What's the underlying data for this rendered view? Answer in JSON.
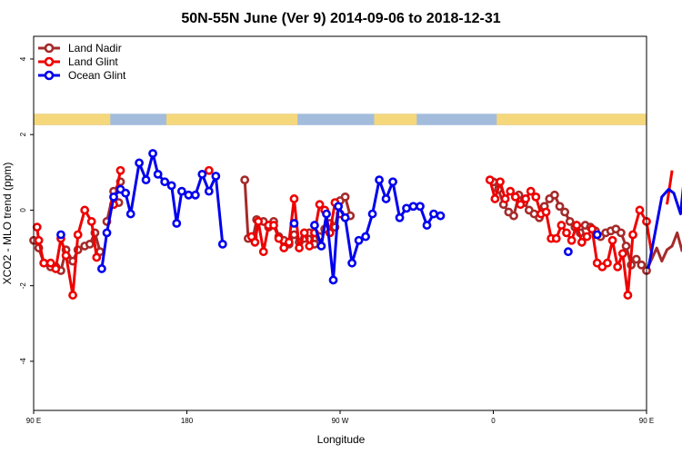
{
  "chart_data": {
    "type": "line",
    "title": "50N-55N June (Ver 9)   2014-09-06 to 2018-12-31",
    "xlabel": "Longitude",
    "ylabel": "XCO2 - MLO trend (ppm)",
    "xlim": [
      90,
      450
    ],
    "ylim": [
      -5.3,
      4.6
    ],
    "x_ticks": [
      {
        "value": 90,
        "label": "90 E"
      },
      {
        "value": 180,
        "label": "180"
      },
      {
        "value": 270,
        "label": "90 W"
      },
      {
        "value": 360,
        "label": "0"
      },
      {
        "value": 450,
        "label": "90 E"
      },
      {
        "value": 540,
        "label": "180"
      }
    ],
    "y_ticks": [
      -4,
      -2,
      0,
      2,
      4
    ],
    "grid": false,
    "legend_position": "top-left",
    "land_band": {
      "y_range": [
        2.55,
        2.25
      ],
      "land_color": "#f5d77c",
      "ocean_color": "#a3bcdc",
      "land_intervals": [
        [
          90,
          135
        ],
        [
          168,
          245
        ],
        [
          290,
          315
        ],
        [
          362,
          450
        ],
        [
          450,
          495
        ],
        [
          528,
          540
        ]
      ]
    },
    "series": [
      {
        "name": "Land Nadir",
        "color": "#a52a2a",
        "points": [
          [
            90,
            -0.8
          ],
          [
            93,
            -1.0
          ],
          [
            96,
            -1.4
          ],
          [
            100,
            -1.5
          ],
          [
            103,
            -1.5
          ],
          [
            106,
            -1.6
          ],
          [
            109,
            -1.05
          ],
          [
            113,
            -1.35
          ],
          [
            116,
            -1.05
          ],
          [
            120,
            -0.95
          ],
          [
            123,
            -0.9
          ],
          [
            126,
            -0.6
          ],
          [
            129,
            -1.1
          ],
          null,
          [
            133,
            -0.3
          ],
          [
            137,
            0.5
          ],
          [
            141,
            0.75
          ],
          null,
          [
            140,
            0.2
          ],
          null,
          [
            214,
            0.8
          ],
          [
            216,
            -0.75
          ],
          [
            219,
            -0.7
          ],
          [
            221,
            -0.25
          ],
          [
            225,
            -0.3
          ],
          [
            228,
            -0.45
          ],
          [
            231,
            -0.3
          ],
          [
            234,
            -0.7
          ],
          [
            237,
            -0.8
          ],
          [
            240,
            -0.9
          ],
          [
            243,
            -0.65
          ],
          [
            246,
            -0.85
          ],
          [
            249,
            -0.75
          ],
          [
            252,
            -0.6
          ],
          [
            255,
            -0.9
          ],
          [
            258,
            -0.7
          ],
          [
            261,
            -0.5
          ],
          [
            264,
            -0.35
          ],
          [
            267,
            -0.45
          ],
          [
            270,
            0.25
          ],
          [
            273,
            0.35
          ],
          [
            276,
            -0.15
          ],
          null,
          [
            360,
            0.75
          ],
          [
            363,
            0.55
          ],
          [
            366,
            0.15
          ],
          [
            369,
            -0.05
          ],
          [
            372,
            -0.15
          ],
          [
            375,
            0.4
          ],
          [
            378,
            0.2
          ],
          [
            381,
            0.0
          ],
          [
            384,
            -0.1
          ],
          [
            387,
            -0.2
          ],
          [
            390,
            0.1
          ],
          [
            393,
            0.3
          ],
          [
            396,
            0.4
          ],
          [
            399,
            0.1
          ],
          [
            402,
            -0.05
          ],
          [
            405,
            -0.3
          ],
          [
            408,
            -0.45
          ],
          [
            411,
            -0.6
          ],
          [
            414,
            -0.4
          ],
          [
            417,
            -0.45
          ],
          [
            420,
            -0.55
          ],
          [
            423,
            -0.7
          ],
          [
            426,
            -0.6
          ],
          [
            429,
            -0.55
          ],
          [
            432,
            -0.5
          ],
          [
            435,
            -0.6
          ],
          [
            438,
            -0.95
          ],
          [
            441,
            -1.45
          ],
          [
            444,
            -1.3
          ],
          [
            447,
            -1.45
          ],
          [
            450,
            -1.6
          ],
          [
            453,
            -1.3
          ],
          [
            456,
            -1.0
          ],
          [
            459,
            -1.35
          ],
          [
            462,
            -1.05
          ],
          [
            465,
            -0.95
          ],
          [
            468,
            -0.6
          ],
          [
            471,
            -1.1
          ],
          null,
          [
            476,
            -0.3
          ],
          [
            480,
            0.5
          ],
          [
            484,
            0.75
          ],
          null,
          [
            483,
            0.2
          ]
        ]
      },
      {
        "name": "Land Glint",
        "color": "#ee0000",
        "points": [
          [
            92,
            -0.45
          ],
          [
            93,
            -0.8
          ],
          [
            96,
            -1.4
          ],
          [
            100,
            -1.4
          ],
          [
            103,
            -1.55
          ],
          [
            106,
            -0.75
          ],
          [
            109,
            -1.2
          ],
          [
            113,
            -2.25
          ],
          [
            116,
            -0.65
          ],
          [
            120,
            0.0
          ],
          [
            124,
            -0.3
          ],
          [
            127,
            -1.25
          ],
          null,
          [
            137,
            0.15
          ],
          [
            141,
            1.05
          ],
          null,
          [
            193,
            1.05
          ],
          null,
          [
            218,
            -0.7
          ],
          [
            220,
            -0.85
          ],
          [
            222,
            -0.3
          ],
          [
            225,
            -1.1
          ],
          [
            228,
            -0.4
          ],
          [
            231,
            -0.4
          ],
          [
            234,
            -0.75
          ],
          [
            237,
            -1.0
          ],
          [
            240,
            -0.85
          ],
          [
            243,
            0.3
          ],
          [
            246,
            -1.0
          ],
          [
            249,
            -0.6
          ],
          [
            252,
            -0.95
          ],
          [
            255,
            -0.6
          ],
          [
            258,
            0.15
          ],
          [
            261,
            0.0
          ],
          [
            264,
            -0.6
          ],
          [
            267,
            0.2
          ],
          [
            270,
            -0.1
          ],
          null,
          [
            358,
            0.8
          ],
          [
            361,
            0.3
          ],
          [
            364,
            0.75
          ],
          [
            367,
            0.3
          ],
          [
            370,
            0.5
          ],
          [
            373,
            0.35
          ],
          [
            376,
            0.15
          ],
          [
            379,
            0.3
          ],
          [
            382,
            0.5
          ],
          [
            385,
            0.35
          ],
          [
            388,
            -0.1
          ],
          [
            391,
            -0.05
          ],
          [
            394,
            -0.75
          ],
          [
            397,
            -0.75
          ],
          [
            400,
            -0.4
          ],
          [
            403,
            -0.6
          ],
          [
            406,
            -0.8
          ],
          [
            409,
            -0.4
          ],
          [
            412,
            -0.85
          ],
          [
            415,
            -0.7
          ],
          [
            418,
            -0.5
          ],
          [
            421,
            -1.4
          ],
          [
            424,
            -1.5
          ],
          [
            427,
            -1.4
          ],
          [
            430,
            -0.8
          ],
          [
            433,
            -1.5
          ],
          [
            436,
            -1.15
          ],
          [
            439,
            -2.25
          ],
          [
            442,
            -0.65
          ],
          [
            446,
            0.0
          ],
          [
            450,
            -0.3
          ],
          [
            453,
            -1.15
          ],
          null,
          [
            462,
            0.15
          ],
          [
            465,
            1.05
          ]
        ]
      },
      {
        "name": "Ocean Glint",
        "color": "#0000ee",
        "points": [
          [
            106,
            -0.65
          ],
          null,
          [
            130,
            -1.55
          ],
          [
            133,
            -0.6
          ],
          [
            137,
            0.35
          ],
          [
            141,
            0.55
          ],
          [
            144,
            0.45
          ],
          [
            147,
            -0.1
          ],
          [
            152,
            1.25
          ],
          [
            156,
            0.8
          ],
          [
            160,
            1.5
          ],
          [
            163,
            0.95
          ],
          [
            167,
            0.75
          ],
          [
            171,
            0.65
          ],
          [
            174,
            -0.35
          ],
          [
            177,
            0.5
          ],
          [
            181,
            0.4
          ],
          [
            185,
            0.4
          ],
          [
            189,
            0.95
          ],
          [
            193,
            0.5
          ],
          [
            197,
            0.9
          ],
          [
            201,
            -0.9
          ],
          null,
          [
            243,
            -0.35
          ],
          null,
          [
            255,
            -0.4
          ],
          [
            259,
            -0.95
          ],
          [
            262,
            -0.1
          ],
          [
            266,
            -1.85
          ],
          [
            269,
            0.1
          ],
          [
            273,
            -0.2
          ],
          [
            277,
            -1.4
          ],
          [
            281,
            -0.8
          ],
          [
            285,
            -0.7
          ],
          [
            289,
            -0.1
          ],
          [
            293,
            0.8
          ],
          [
            297,
            0.3
          ],
          [
            301,
            0.75
          ],
          [
            305,
            -0.2
          ],
          [
            309,
            0.05
          ],
          [
            313,
            0.1
          ],
          [
            317,
            0.1
          ],
          [
            321,
            -0.4
          ],
          [
            325,
            -0.1
          ],
          [
            329,
            -0.15
          ],
          null,
          [
            404,
            -1.1
          ],
          null,
          [
            421,
            -0.65
          ],
          null,
          [
            451,
            -1.55
          ],
          [
            455,
            -0.6
          ],
          [
            459,
            0.35
          ],
          [
            463,
            0.55
          ],
          [
            466,
            0.45
          ],
          [
            470,
            -0.1
          ],
          [
            473,
            1.25
          ],
          [
            477,
            0.8
          ],
          [
            481,
            1.5
          ]
        ]
      }
    ]
  }
}
